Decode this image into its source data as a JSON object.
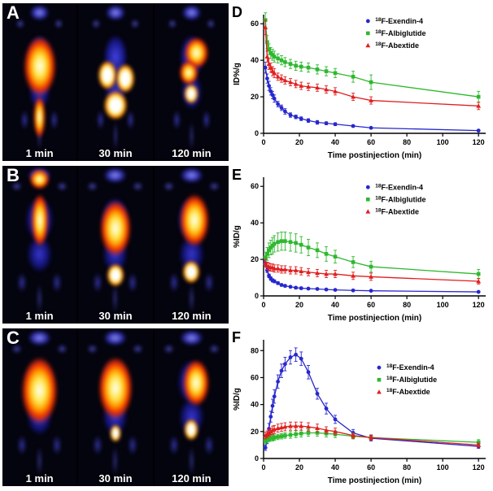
{
  "pet_panels": [
    {
      "label": "A",
      "scans": [
        {
          "time": "1 min"
        },
        {
          "time": "30 min"
        },
        {
          "time": "120 min"
        }
      ]
    },
    {
      "label": "B",
      "scans": [
        {
          "time": "1 min"
        },
        {
          "time": "30 min"
        },
        {
          "time": "120 min"
        }
      ]
    },
    {
      "label": "C",
      "scans": [
        {
          "time": "1 min"
        },
        {
          "time": "30 min"
        },
        {
          "time": "120 min"
        }
      ]
    }
  ],
  "colors": {
    "exendin": "#2727cf",
    "albiglutide": "#2eb82e",
    "abextide": "#e01f1f"
  },
  "chart_data": [
    {
      "panel": "D",
      "type": "line",
      "xlabel": "Time postinjection (min)",
      "ylabel": "ID%/g",
      "xlim": [
        0,
        124
      ],
      "ylim": [
        0,
        65
      ],
      "xticks": [
        0,
        20,
        40,
        60,
        80,
        100,
        120
      ],
      "yticks": [
        0,
        20,
        40,
        60
      ],
      "grid": false,
      "legend_position": "top-right",
      "legend_x": 0.47,
      "legend_y": 0.02,
      "x": [
        1,
        2,
        3,
        4,
        5,
        6,
        8,
        10,
        12,
        15,
        18,
        21,
        25,
        30,
        35,
        40,
        50,
        60,
        120
      ],
      "series": [
        {
          "name": "18F-Exendin-4",
          "color": "#2727cf",
          "marker": "circle",
          "values": [
            36,
            30,
            26,
            23,
            21,
            19,
            16,
            14,
            12,
            10,
            9,
            8,
            7,
            6,
            5.5,
            5,
            4,
            3,
            1.5
          ],
          "err": [
            3,
            2.5,
            2.5,
            2,
            2,
            2,
            1.5,
            1.5,
            1.5,
            1.2,
            1,
            1,
            1,
            1,
            0.8,
            0.8,
            0.6,
            0.5,
            0.4
          ]
        },
        {
          "name": "18F-Albiglutide",
          "color": "#2eb82e",
          "marker": "square",
          "values": [
            62,
            50,
            46,
            44,
            43,
            42,
            41,
            40,
            39,
            38,
            37,
            36.5,
            36,
            35,
            34,
            33,
            31,
            28,
            20
          ],
          "err": [
            4,
            3.5,
            3,
            3,
            3,
            3,
            2.5,
            2.5,
            2.5,
            2.5,
            2.5,
            2.5,
            2.5,
            2.5,
            2.5,
            2.5,
            3,
            4,
            3
          ]
        },
        {
          "name": "18F-Abextide",
          "color": "#e01f1f",
          "marker": "triangle",
          "values": [
            58,
            42,
            38,
            36,
            34,
            33,
            31,
            30,
            29,
            28,
            27,
            26,
            25.5,
            25,
            24,
            23,
            20,
            18,
            15
          ],
          "err": [
            4,
            3,
            3,
            2.5,
            2.5,
            2.5,
            2,
            2,
            2,
            2,
            2,
            2,
            2,
            2,
            2,
            2,
            2,
            2,
            2
          ]
        }
      ]
    },
    {
      "panel": "E",
      "type": "line",
      "xlabel": "Time postinjection (min)",
      "ylabel": "%ID/g",
      "xlim": [
        0,
        124
      ],
      "ylim": [
        0,
        65
      ],
      "xticks": [
        0,
        20,
        40,
        60,
        80,
        100,
        120
      ],
      "yticks": [
        0,
        20,
        40,
        60
      ],
      "grid": false,
      "legend_position": "top-right",
      "legend_x": 0.47,
      "legend_y": 0.05,
      "x": [
        1,
        2,
        3,
        4,
        5,
        6,
        8,
        10,
        12,
        15,
        18,
        21,
        25,
        30,
        35,
        40,
        50,
        60,
        120
      ],
      "series": [
        {
          "name": "18F-Exendin-4",
          "color": "#2727cf",
          "marker": "circle",
          "values": [
            18,
            14,
            11,
            9.5,
            8.5,
            8,
            7,
            6,
            5.5,
            5,
            4.5,
            4.2,
            4,
            3.8,
            3.5,
            3.3,
            3,
            2.8,
            2.2
          ],
          "err": [
            1.5,
            1.2,
            1,
            1,
            0.9,
            0.8,
            0.8,
            0.7,
            0.7,
            0.6,
            0.6,
            0.6,
            0.5,
            0.5,
            0.5,
            0.5,
            0.5,
            0.4,
            0.4
          ]
        },
        {
          "name": "18F-Albiglutide",
          "color": "#2eb82e",
          "marker": "square",
          "values": [
            21,
            23,
            25,
            26.5,
            27.5,
            28.5,
            29.5,
            30,
            30,
            29.5,
            29,
            28,
            26.5,
            25,
            23,
            21.5,
            18.5,
            16,
            12
          ],
          "err": [
            3,
            3.5,
            4,
            4,
            4.5,
            4.5,
            5,
            5,
            5,
            5,
            5,
            4.5,
            4.5,
            4,
            4,
            3.5,
            3,
            3,
            2.5
          ]
        },
        {
          "name": "18F-Abextide",
          "color": "#e01f1f",
          "marker": "triangle",
          "values": [
            18,
            16.5,
            16,
            15.5,
            15.5,
            15,
            15,
            14.5,
            14.5,
            14,
            14,
            13.5,
            13,
            12.5,
            12,
            12,
            11,
            10.5,
            8
          ],
          "err": [
            2,
            2,
            2,
            2,
            2,
            2,
            2,
            2,
            2,
            2,
            2,
            2,
            2,
            2,
            2,
            2,
            2,
            2,
            1.5
          ]
        }
      ]
    },
    {
      "panel": "F",
      "type": "line",
      "xlabel": "Time postinjection (min)",
      "ylabel": "%ID/g",
      "xlim": [
        0,
        124
      ],
      "ylim": [
        0,
        88
      ],
      "xticks": [
        0,
        20,
        40,
        60,
        80,
        100,
        120
      ],
      "yticks": [
        0,
        20,
        40,
        60,
        80
      ],
      "grid": false,
      "legend_position": "right-upper",
      "legend_x": 0.52,
      "legend_y": 0.2,
      "x": [
        1,
        2,
        3,
        4,
        5,
        6,
        8,
        10,
        12,
        15,
        18,
        21,
        25,
        30,
        35,
        40,
        50,
        60,
        120
      ],
      "series": [
        {
          "name": "18F-Exendin-4",
          "color": "#2727cf",
          "marker": "circle",
          "values": [
            8,
            14,
            22,
            31,
            39,
            46,
            57,
            65,
            70,
            75,
            77,
            74,
            64,
            48,
            37,
            29,
            19,
            15,
            9
          ],
          "err": [
            2,
            3,
            4,
            4,
            5,
            5,
            5,
            5,
            5,
            5,
            5,
            5,
            5,
            4,
            4,
            3,
            2.5,
            2,
            1.5
          ]
        },
        {
          "name": "18F-Albiglutide",
          "color": "#2eb82e",
          "marker": "square",
          "values": [
            13,
            14,
            14.5,
            15,
            15,
            15.5,
            16,
            16.5,
            17,
            17.5,
            18,
            18.5,
            19,
            19,
            18.5,
            18,
            16.5,
            15.5,
            12
          ],
          "err": [
            2,
            2,
            2,
            2,
            2,
            2,
            2,
            2,
            2,
            2.5,
            2.5,
            2.5,
            2.5,
            2.5,
            2.5,
            2.5,
            2,
            2,
            2
          ]
        },
        {
          "name": "18F-Abextide",
          "color": "#e01f1f",
          "marker": "triangle",
          "values": [
            17,
            18,
            19,
            20,
            21,
            21.5,
            22.5,
            23,
            23.5,
            24,
            24,
            24,
            23.5,
            22.5,
            21,
            20,
            17,
            15.5,
            10
          ],
          "err": [
            2.5,
            2.5,
            2.5,
            2.5,
            3,
            3,
            3,
            3,
            3,
            3,
            3,
            3,
            3,
            3,
            2.5,
            2.5,
            2,
            2,
            1.5
          ]
        }
      ]
    }
  ]
}
